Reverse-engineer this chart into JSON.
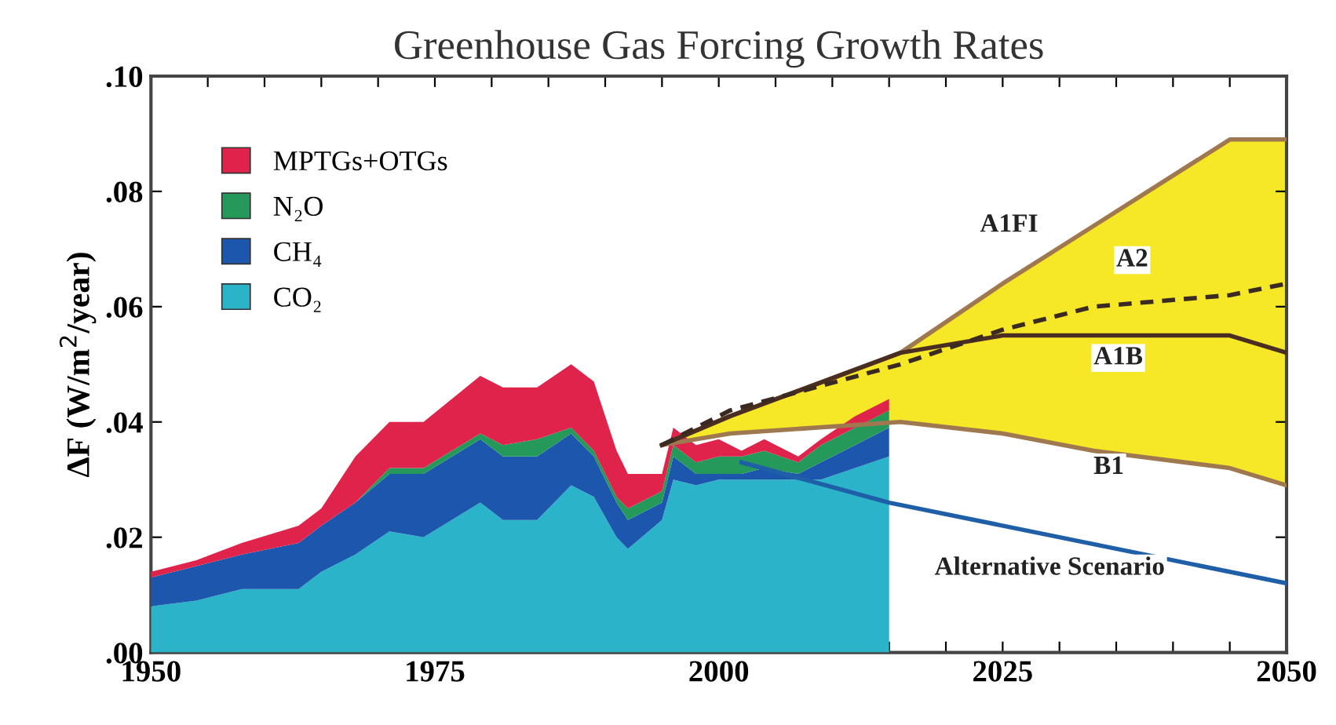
{
  "chart_data": {
    "type": "area",
    "title": "Greenhouse Gas Forcing Growth Rates",
    "ylabel": "ΔF (W/m$^{2}$/year)",
    "stacked": true,
    "legend": "top left",
    "grid": false,
    "x": [
      1950,
      1954,
      1958,
      1963,
      1965,
      1968,
      1971,
      1974,
      1979,
      1981,
      1984,
      1987,
      1989,
      1991,
      1992,
      1995,
      1996,
      1998,
      2000,
      2002,
      2004,
      2007,
      2009,
      2012,
      2015
    ],
    "series": [
      {
        "name": "CO₂",
        "color": "#2ab3c9",
        "values": [
          0.008,
          0.009,
          0.011,
          0.011,
          0.014,
          0.017,
          0.021,
          0.02,
          0.026,
          0.023,
          0.023,
          0.029,
          0.027,
          0.02,
          0.018,
          0.023,
          0.03,
          0.029,
          0.03,
          0.03,
          0.03,
          0.03,
          0.03,
          0.032,
          0.034
        ]
      },
      {
        "name": "CH₄",
        "color": "#1d56ad",
        "values": [
          0.005,
          0.006,
          0.006,
          0.008,
          0.008,
          0.009,
          0.01,
          0.011,
          0.011,
          0.011,
          0.011,
          0.009,
          0.007,
          0.006,
          0.005,
          0.003,
          0.004,
          0.002,
          0.001,
          0.001,
          0.002,
          0.001,
          0.003,
          0.004,
          0.005
        ]
      },
      {
        "name": "N₂O",
        "color": "#25995a",
        "values": [
          0.0,
          0.0,
          0.0,
          0.0,
          0.0,
          0.0,
          0.001,
          0.001,
          0.001,
          0.002,
          0.003,
          0.001,
          0.001,
          0.001,
          0.002,
          0.002,
          0.002,
          0.002,
          0.003,
          0.003,
          0.003,
          0.002,
          0.003,
          0.003,
          0.003
        ]
      },
      {
        "name": "MPTGs+OTGs",
        "color": "#e0234b",
        "values": [
          0.001,
          0.001,
          0.002,
          0.003,
          0.003,
          0.008,
          0.008,
          0.008,
          0.01,
          0.01,
          0.009,
          0.011,
          0.012,
          0.008,
          0.006,
          0.003,
          0.003,
          0.003,
          0.003,
          0.001,
          0.002,
          0.001,
          0.001,
          0.002,
          0.002
        ]
      },
      {
        "type": "line",
        "color": "#a07850",
        "line_style": "solid",
        "x": [
          1995,
          2001,
          2016,
          2025,
          2033,
          2045,
          2050
        ],
        "values": [
          0.036,
          0.041,
          0.052,
          0.064,
          0.074,
          0.089,
          0.089
        ]
      },
      {
        "type": "line",
        "color": "#a07850",
        "line_style": "solid",
        "x": [
          1995,
          2001,
          2016,
          2025,
          2033,
          2045,
          2050
        ],
        "values": [
          0.036,
          0.038,
          0.04,
          0.038,
          0.035,
          0.032,
          0.029
        ]
      },
      {
        "type": "line",
        "color": "#4a2e22",
        "line_style": "solid",
        "x": [
          1995,
          2001,
          2016,
          2025,
          2033,
          2045,
          2050
        ],
        "values": [
          0.036,
          0.041,
          0.052,
          0.055,
          0.055,
          0.055,
          0.052
        ],
        "lower": [
          0.036,
          0.038,
          0.04,
          0.038,
          0.035,
          0.032,
          0.029
        ],
        "upper": [
          0.036,
          0.041,
          0.052,
          0.064,
          0.074,
          0.089,
          0.089
        ]
      },
      {
        "type": "line",
        "color": "#3a2a22",
        "line_style": "dashed",
        "x": [
          1995,
          2001,
          2016,
          2025,
          2033,
          2045,
          2050
        ],
        "values": [
          0.036,
          0.042,
          0.05,
          0.056,
          0.06,
          0.062,
          0.064
        ]
      },
      {
        "type": "line",
        "color": "#1f5fa8",
        "line_style": "solid",
        "x": [
          2002,
          2015,
          2050
        ],
        "values": [
          0.033,
          0.026,
          0.012
        ]
      }
    ],
    "annotations": [
      "A1FI",
      "A2",
      "A1B",
      "B1",
      "Alternative Scenario"
    ],
    "xlim": [
      1950,
      2050
    ],
    "ylim": [
      0,
      0.1
    ],
    "xticks": [
      1950,
      {
        "value": 1955,
        "label": null
      },
      {
        "value": 1960,
        "label": null
      },
      {
        "value": 1965,
        "label": null
      },
      {
        "value": 1970,
        "label": null
      },
      1975,
      {
        "value": 1980,
        "label": null
      },
      {
        "value": 1985,
        "label": null
      },
      {
        "value": 1990,
        "label": null
      },
      {
        "value": 1995,
        "label": null
      },
      2000,
      {
        "value": 2005,
        "label": null
      },
      {
        "value": 2010,
        "label": null
      },
      {
        "value": 2015,
        "label": null
      },
      {
        "value": 2020,
        "label": null
      },
      2025,
      {
        "value": 2030,
        "label": null
      },
      {
        "value": 2035,
        "label": null
      },
      {
        "value": 2040,
        "label": null
      },
      {
        "value": 2045,
        "label": null
      },
      2050
    ],
    "yticks": [
      {
        "value": 0,
        "label": ".00"
      },
      {
        "value": 0.02,
        "label": ".02"
      },
      {
        "value": 0.04,
        "label": ".04"
      },
      {
        "value": 0.06,
        "label": ".06"
      },
      {
        "value": 0.08,
        "label": ".08"
      },
      {
        "value": 0.1,
        "label": ".10"
      }
    ]
  }
}
